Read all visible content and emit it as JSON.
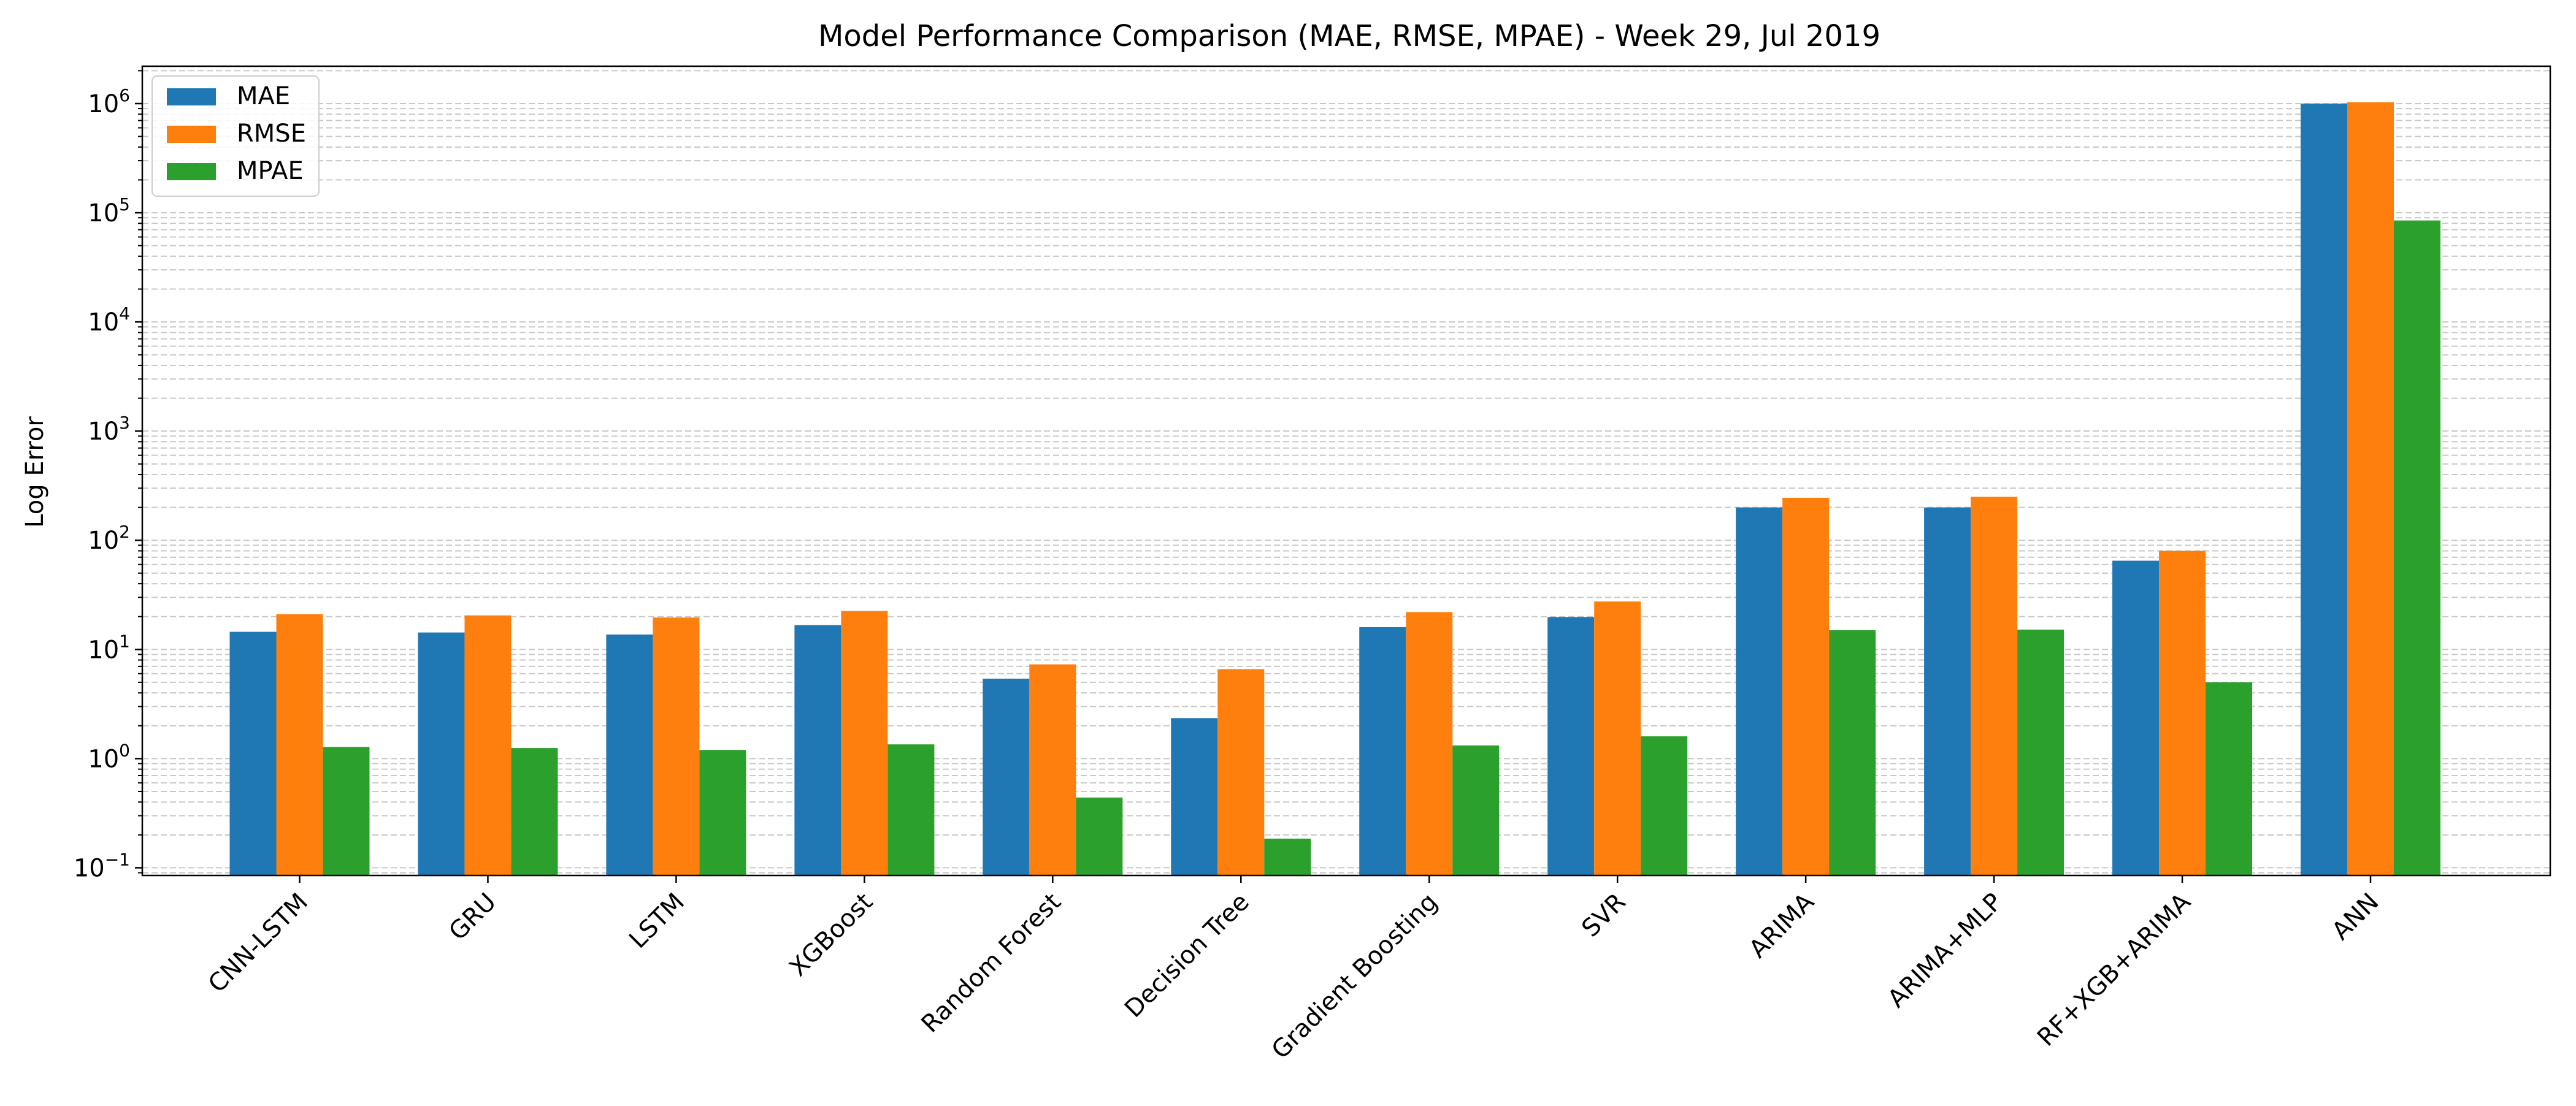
{
  "chart_data": {
    "type": "bar",
    "title": "Model Performance Comparison (MAE, RMSE, MPAE) - Week 29, Jul 2019",
    "xlabel": "",
    "ylabel": "Log Error",
    "yscale": "log",
    "ylim": [
      0.085,
      2200000
    ],
    "yticks": [
      {
        "value": 0.1,
        "base": "10",
        "exp": "−1"
      },
      {
        "value": 1,
        "base": "10",
        "exp": "0"
      },
      {
        "value": 10,
        "base": "10",
        "exp": "1"
      },
      {
        "value": 100,
        "base": "10",
        "exp": "2"
      },
      {
        "value": 1000,
        "base": "10",
        "exp": "3"
      },
      {
        "value": 10000,
        "base": "10",
        "exp": "4"
      },
      {
        "value": 100000,
        "base": "10",
        "exp": "5"
      },
      {
        "value": 1000000,
        "base": "10",
        "exp": "6"
      }
    ],
    "grid": "y-major-and-minor-dashed",
    "legend_position": "top-left",
    "categories": [
      "CNN-LSTM",
      "GRU",
      "LSTM",
      "XGBoost",
      "Random Forest",
      "Decision Tree",
      "Gradient Boosting",
      "SVR",
      "ARIMA",
      "ARIMA+MLP",
      "RF+XGB+ARIMA",
      "ANN"
    ],
    "series": [
      {
        "name": "MAE",
        "color": "#1f77b4",
        "values": [
          14.5,
          14.3,
          13.7,
          16.7,
          5.4,
          2.35,
          16.0,
          19.8,
          200,
          200,
          65,
          1000000
        ]
      },
      {
        "name": "RMSE",
        "color": "#ff7f0e",
        "values": [
          21.0,
          20.5,
          19.6,
          22.5,
          7.3,
          6.6,
          22.0,
          27.5,
          245,
          250,
          80,
          1030000
        ]
      },
      {
        "name": "MPAE",
        "color": "#2ca02c",
        "values": [
          1.28,
          1.25,
          1.2,
          1.35,
          0.44,
          0.185,
          1.32,
          1.6,
          15.0,
          15.2,
          5.0,
          85000
        ]
      }
    ]
  }
}
